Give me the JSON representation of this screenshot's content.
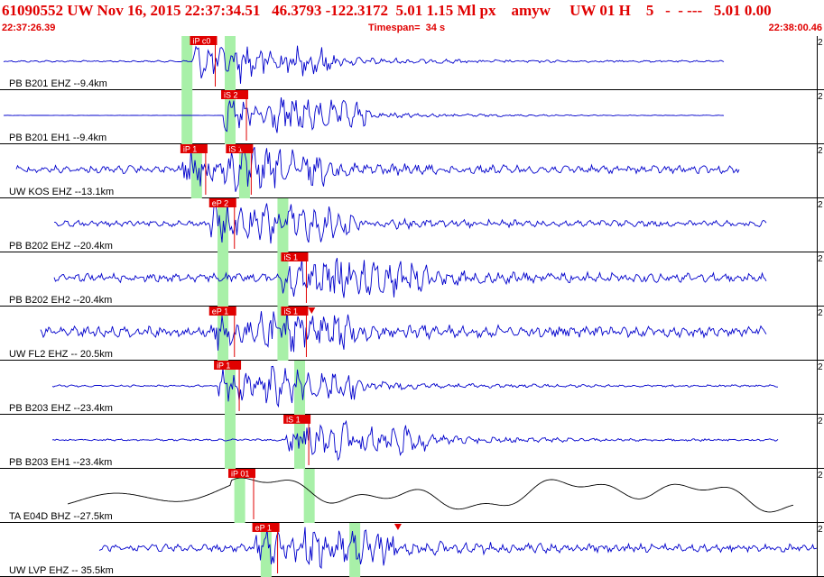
{
  "header": {
    "title": "61090552 UW Nov 16, 2015 22:37:34.51   46.3793 -122.3172  5.01 1.15 Ml px    amyw     UW 01 H    5   -  - ---   5.01 0.00",
    "start_time": "22:37:26.39",
    "timespan": "Timespan=  34 s",
    "end_time": "22:38:00.46"
  },
  "colors": {
    "waveform": "#0000cc",
    "waveform_lp": "#000000",
    "pick": "#e00000",
    "window": "#a8f0a8"
  },
  "scale_mark": "2",
  "traces": [
    {
      "label": "PB B201 EHZ --9.4km",
      "picks": [
        {
          "label": "iP c0",
          "t": 8.0
        }
      ],
      "windows": [
        7.8,
        9.6
      ],
      "arrivals": []
    },
    {
      "label": "PB B201 EH1 --9.4km",
      "picks": [
        {
          "label": "iS 2",
          "t": 9.3
        }
      ],
      "windows": [
        7.8,
        9.6
      ],
      "arrivals": [
        10.1
      ]
    },
    {
      "label": "UW KOS EHZ --13.1km",
      "picks": [
        {
          "label": "iP 1",
          "t": 7.6
        },
        {
          "label": "iS 1",
          "t": 9.5
        }
      ],
      "windows": [
        8.2,
        10.2
      ],
      "arrivals": [
        10.1
      ]
    },
    {
      "label": "PB B202 EHZ --20.4km",
      "picks": [
        {
          "label": "eP 2",
          "t": 8.8
        }
      ],
      "windows": [
        9.3,
        11.8
      ],
      "arrivals": []
    },
    {
      "label": "PB B202 EH2 --20.4km",
      "picks": [
        {
          "label": "iS 1",
          "t": 11.8
        }
      ],
      "windows": [
        9.3,
        11.8
      ],
      "arrivals": []
    },
    {
      "label": "UW FL2 EHZ -- 20.5km",
      "picks": [
        {
          "label": "eP 1",
          "t": 8.8
        },
        {
          "label": "iS 1",
          "t": 11.8
        }
      ],
      "windows": [
        9.3,
        11.8
      ],
      "arrivals": [
        13.0
      ]
    },
    {
      "label": "PB B203 EHZ --23.4km",
      "picks": [
        {
          "label": "iP 1",
          "t": 9.0
        }
      ],
      "windows": [
        9.6,
        12.5
      ],
      "arrivals": []
    },
    {
      "label": "PB B203 EH1 --23.4km",
      "picks": [
        {
          "label": "iS 1",
          "t": 11.9
        }
      ],
      "windows": [
        9.6,
        12.5
      ],
      "arrivals": [
        12.6
      ]
    },
    {
      "label": "TA E04D BHZ --27.5km",
      "picks": [
        {
          "label": "iP 01",
          "t": 9.6
        }
      ],
      "windows": [
        10.0,
        12.9
      ],
      "arrivals": []
    },
    {
      "label": "UW LVP EHZ -- 35.5km",
      "picks": [
        {
          "label": "eP 1",
          "t": 10.6
        }
      ],
      "windows": [
        11.1,
        14.8
      ],
      "arrivals": [
        16.6
      ]
    }
  ]
}
